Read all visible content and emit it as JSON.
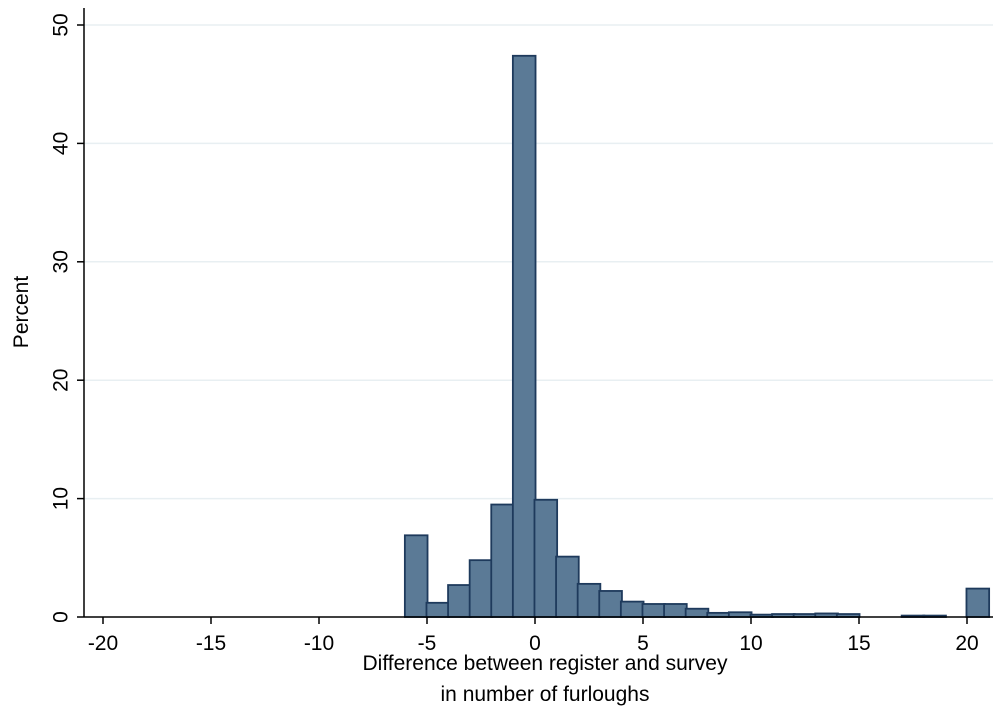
{
  "chart_data": {
    "type": "bar",
    "xlabel_lines": [
      "Difference between register and survey",
      "in number of furloughs"
    ],
    "ylabel": "Percent",
    "xlim": [
      -21,
      21
    ],
    "ylim": [
      0,
      50
    ],
    "xticks": [
      "-20",
      "-15",
      "-10",
      "-5",
      "0",
      "5",
      "10",
      "15",
      "20"
    ],
    "yticks": [
      "0",
      "10",
      "20",
      "30",
      "40",
      "50"
    ],
    "grid": true,
    "bin_width": 1.05,
    "bar_color": "#5b7a96",
    "bar_edge_color": "#1e3a5c",
    "grid_color": "#e8eff2",
    "bins": [
      {
        "x": -5.5,
        "y": 6.9
      },
      {
        "x": -4.5,
        "y": 1.2
      },
      {
        "x": -3.5,
        "y": 2.7
      },
      {
        "x": -2.5,
        "y": 4.8
      },
      {
        "x": -1.5,
        "y": 9.5
      },
      {
        "x": -0.5,
        "y": 47.4
      },
      {
        "x": 0.5,
        "y": 9.9
      },
      {
        "x": 1.5,
        "y": 5.1
      },
      {
        "x": 2.5,
        "y": 2.8
      },
      {
        "x": 3.5,
        "y": 2.2
      },
      {
        "x": 4.5,
        "y": 1.3
      },
      {
        "x": 5.5,
        "y": 1.1
      },
      {
        "x": 6.5,
        "y": 1.1
      },
      {
        "x": 7.5,
        "y": 0.7
      },
      {
        "x": 8.5,
        "y": 0.35
      },
      {
        "x": 9.5,
        "y": 0.4
      },
      {
        "x": 10.5,
        "y": 0.2
      },
      {
        "x": 11.5,
        "y": 0.25
      },
      {
        "x": 12.5,
        "y": 0.25
      },
      {
        "x": 13.5,
        "y": 0.3
      },
      {
        "x": 14.5,
        "y": 0.25
      },
      {
        "x": 17.5,
        "y": 0.12
      },
      {
        "x": 18.5,
        "y": 0.12
      },
      {
        "x": 20.5,
        "y": 2.4
      }
    ]
  }
}
